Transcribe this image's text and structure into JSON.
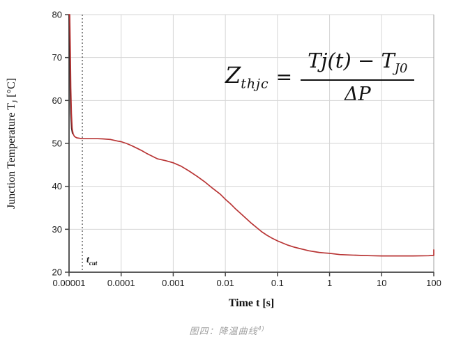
{
  "figure": {
    "caption_text": "图四：降温曲线",
    "caption_sup": "4)"
  },
  "formula": {
    "lhs_base": "Z",
    "lhs_sub": "thjc",
    "equals": "=",
    "num_main": "Tj(t) − T",
    "num_sub": "J0",
    "den": "ΔP"
  },
  "axes": {
    "y_title_main": "Junction Temperature T",
    "y_title_sub": "J",
    "y_title_unit": " [°C]",
    "x_title": "Time t [s]",
    "tcut_base": "t",
    "tcut_sub": "cut"
  },
  "colors": {
    "curve": "#b83434",
    "curve_drop_dark": "#3b2424",
    "grid": "#d6d6d6",
    "grid_right_border": "#a0a0a0",
    "axis": "#444444",
    "tick_label": "#1a1a1a",
    "tcut_line": "#555555",
    "caption": "#a0a0a0"
  },
  "chart_data": {
    "type": "line",
    "title": "",
    "xlabel": "Time t [s]",
    "ylabel": "Junction Temperature TJ [°C]",
    "x_scale": "log10",
    "xlim": [
      1e-05,
      100
    ],
    "ylim": [
      20,
      80
    ],
    "grid": true,
    "legend": "none",
    "x_tick_labels": [
      "0.00001",
      "0.0001",
      "0.001",
      "0.01",
      "0.1",
      "1",
      "10",
      "100"
    ],
    "y_ticks": [
      20,
      30,
      40,
      50,
      60,
      70,
      80
    ],
    "annotations": {
      "t_cut_seconds": 1.8e-05,
      "t_cut_label": "tcut"
    },
    "series": [
      {
        "name": "junction temperature cooling curve",
        "color": "#b83434",
        "points": [
          [
            1e-05,
            80
          ],
          [
            1.03e-05,
            80
          ],
          [
            1.06e-05,
            71
          ],
          [
            1.08e-05,
            63
          ],
          [
            1.11e-05,
            57
          ],
          [
            1.15e-05,
            53.5
          ],
          [
            1.2e-05,
            52.2
          ],
          [
            1.27e-05,
            51.6
          ],
          [
            1.41e-05,
            51.3
          ],
          [
            1.78e-05,
            51.1
          ],
          [
            2.51e-05,
            51.1
          ],
          [
            3.55e-05,
            51.1
          ],
          [
            4.47e-05,
            51.05
          ],
          [
            6.31e-05,
            50.9
          ],
          [
            8.91e-05,
            50.5
          ],
          [
            0.0001,
            50.4
          ],
          [
            0.000126,
            50.0
          ],
          [
            0.000158,
            49.5
          ],
          [
            0.0002,
            48.9
          ],
          [
            0.000251,
            48.3
          ],
          [
            0.000316,
            47.6
          ],
          [
            0.000398,
            47.0
          ],
          [
            0.000501,
            46.4
          ],
          [
            0.000708,
            46.0
          ],
          [
            0.001,
            45.5
          ],
          [
            0.00141,
            44.7
          ],
          [
            0.002,
            43.6
          ],
          [
            0.00282,
            42.4
          ],
          [
            0.00398,
            41.1
          ],
          [
            0.00562,
            39.6
          ],
          [
            0.00794,
            38.2
          ],
          [
            0.01,
            37.0
          ],
          [
            0.0126,
            35.9
          ],
          [
            0.0158,
            34.7
          ],
          [
            0.02,
            33.6
          ],
          [
            0.0251,
            32.5
          ],
          [
            0.0316,
            31.4
          ],
          [
            0.0398,
            30.4
          ],
          [
            0.0501,
            29.4
          ],
          [
            0.0631,
            28.6
          ],
          [
            0.0794,
            27.9
          ],
          [
            0.1,
            27.3
          ],
          [
            0.126,
            26.8
          ],
          [
            0.158,
            26.3
          ],
          [
            0.2,
            25.9
          ],
          [
            0.251,
            25.6
          ],
          [
            0.316,
            25.3
          ],
          [
            0.398,
            25.0
          ],
          [
            0.501,
            24.8
          ],
          [
            0.631,
            24.6
          ],
          [
            0.794,
            24.5
          ],
          [
            1,
            24.4
          ],
          [
            1.58,
            24.1
          ],
          [
            2.51,
            24.0
          ],
          [
            3.98,
            23.9
          ],
          [
            6.31,
            23.85
          ],
          [
            10,
            23.8
          ],
          [
            20,
            23.8
          ],
          [
            39.8,
            23.8
          ],
          [
            79.4,
            23.85
          ],
          [
            100,
            23.9
          ],
          [
            100,
            25.2
          ]
        ]
      }
    ]
  }
}
